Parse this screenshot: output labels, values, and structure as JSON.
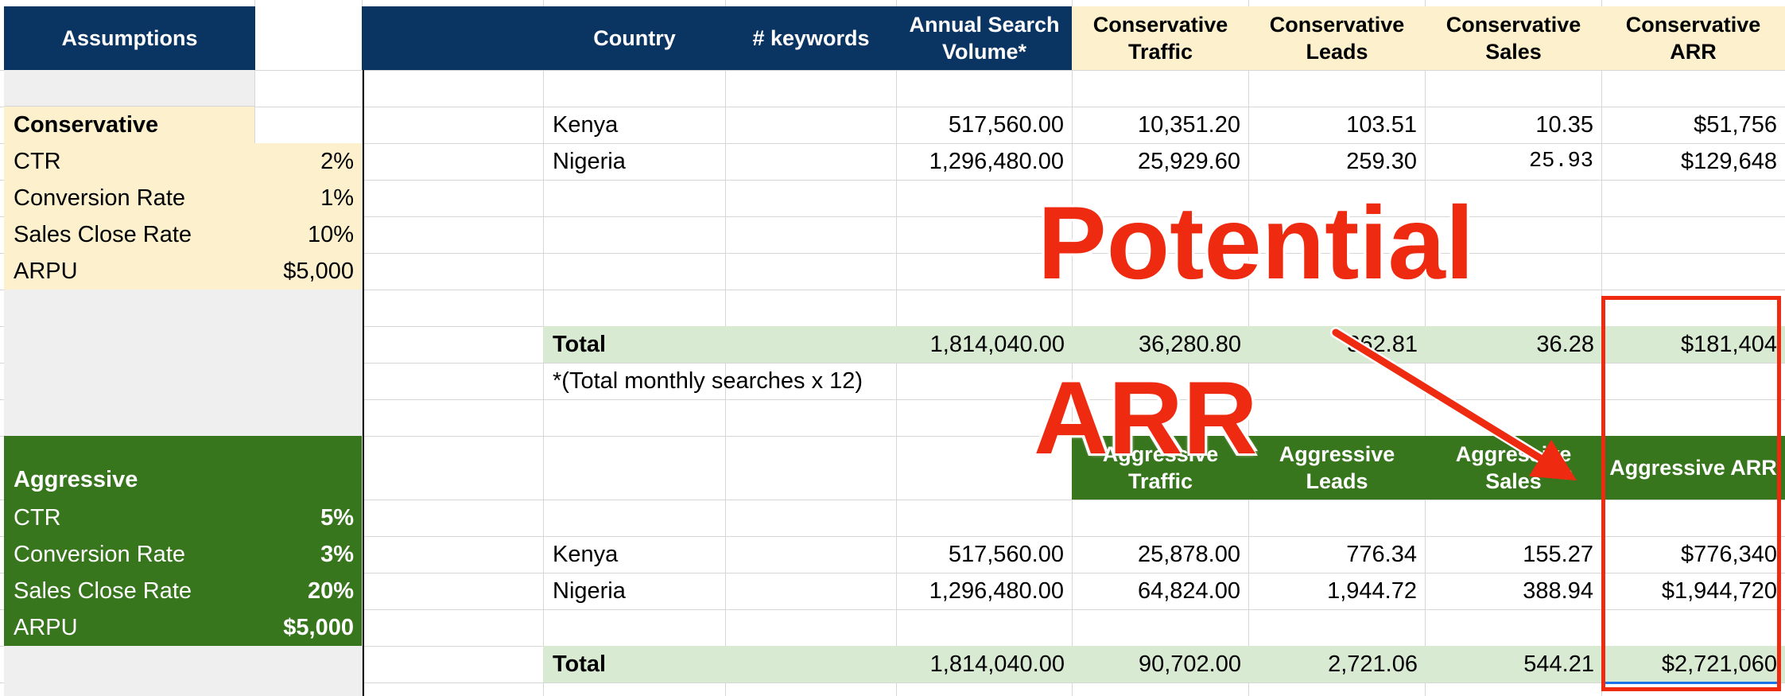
{
  "assumptions": {
    "header": "Assumptions",
    "conservative": {
      "title": "Conservative",
      "rows": [
        {
          "label": "CTR",
          "value": "2%"
        },
        {
          "label": "Conversion Rate",
          "value": "1%"
        },
        {
          "label": "Sales Close Rate",
          "value": "10%"
        },
        {
          "label": "ARPU",
          "value": "$5,000"
        }
      ]
    },
    "aggressive": {
      "title": "Aggressive",
      "rows": [
        {
          "label": "CTR",
          "value": "5%"
        },
        {
          "label": "Conversion Rate",
          "value": "3%"
        },
        {
          "label": "Sales Close Rate",
          "value": "20%"
        },
        {
          "label": "ARPU",
          "value": "$5,000"
        }
      ]
    }
  },
  "conservative_table": {
    "headers": [
      "Country",
      "# keywords",
      "Annual Search Volume*",
      "Conservative Traffic",
      "Conservative Leads",
      "Conservative Sales",
      "Conservative ARR"
    ],
    "rows": [
      {
        "country": "Kenya",
        "keywords": "",
        "volume": "517,560.00",
        "traffic": "10,351.20",
        "leads": "103.51",
        "sales": "10.35",
        "arr": "$51,756"
      },
      {
        "country": "Nigeria",
        "keywords": "",
        "volume": "1,296,480.00",
        "traffic": "25,929.60",
        "leads": "259.30",
        "sales": "25.93",
        "arr": "$129,648"
      }
    ],
    "total": {
      "label": "Total",
      "volume": "1,814,040.00",
      "traffic": "36,280.80",
      "leads": "362.81",
      "sales": "36.28",
      "arr": "$181,404"
    },
    "footnote": "*(Total monthly searches x 12)"
  },
  "aggressive_table": {
    "headers": [
      "Aggressive Traffic",
      "Aggressive Leads",
      "Aggressive Sales",
      "Aggressive ARR"
    ],
    "rows": [
      {
        "country": "Kenya",
        "volume": "517,560.00",
        "traffic": "25,878.00",
        "leads": "776.34",
        "sales": "155.27",
        "arr": "$776,340"
      },
      {
        "country": "Nigeria",
        "volume": "1,296,480.00",
        "traffic": "64,824.00",
        "leads": "1,944.72",
        "sales": "388.94",
        "arr": "$1,944,720"
      }
    ],
    "total": {
      "label": "Total",
      "volume": "1,814,040.00",
      "traffic": "90,702.00",
      "leads": "2,721.06",
      "sales": "544.21",
      "arr": "$2,721,060"
    }
  },
  "annotation": {
    "line1": "Potential",
    "line2": "ARR",
    "color": "#ee2a10"
  },
  "colors": {
    "navy_header": "#0a3461",
    "yellow_fill": "#fdf0cd",
    "green_fill": "#37761d",
    "total_fill": "#d9ead3"
  }
}
